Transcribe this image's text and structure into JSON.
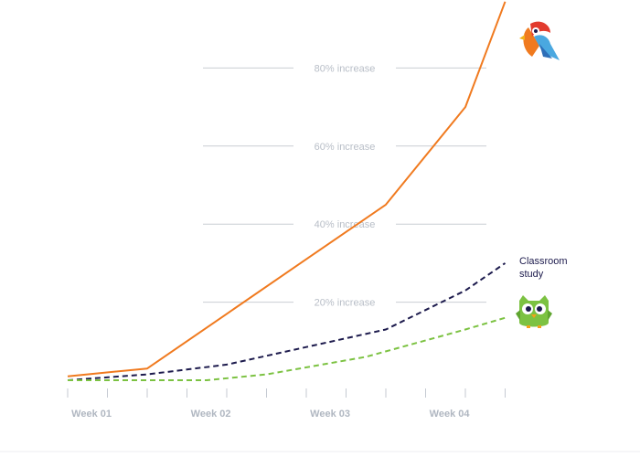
{
  "chart_data": {
    "type": "line",
    "x": [
      0,
      1,
      2,
      3,
      4,
      5,
      6,
      7,
      8,
      9,
      10,
      11
    ],
    "tick_labels": [
      "Week 01",
      "Week 02",
      "Week 03",
      "Week 04"
    ],
    "ylim": [
      0,
      90
    ],
    "gridlines": [
      {
        "value": 20,
        "label": "20% increase"
      },
      {
        "value": 40,
        "label": "40% increase"
      },
      {
        "value": 60,
        "label": "60% increase"
      },
      {
        "value": 80,
        "label": "80% increase"
      }
    ],
    "series": [
      {
        "key": "parrot",
        "color": "#f07a1f",
        "dash": "none",
        "icon": "parrot-logo-icon",
        "x": [
          0,
          2,
          4,
          6,
          8,
          10,
          11
        ],
        "y": [
          1,
          3,
          17,
          31,
          45,
          70,
          97
        ]
      },
      {
        "key": "classroom",
        "name": "Classroom study",
        "name_lines": [
          "Classroom",
          "study"
        ],
        "color": "#1d1b4d",
        "dash": "6 4",
        "x": [
          0,
          2,
          4,
          6,
          8,
          10,
          11
        ],
        "y": [
          0,
          1.5,
          4,
          8.5,
          13,
          23,
          30
        ]
      },
      {
        "key": "owl",
        "color": "#7cc242",
        "dash": "6 4",
        "icon": "owl-logo-icon",
        "x": [
          0,
          2,
          3.5,
          5,
          7.5,
          10,
          11
        ],
        "y": [
          0,
          0,
          0,
          1.5,
          6,
          13,
          16
        ]
      }
    ],
    "grid": true
  }
}
